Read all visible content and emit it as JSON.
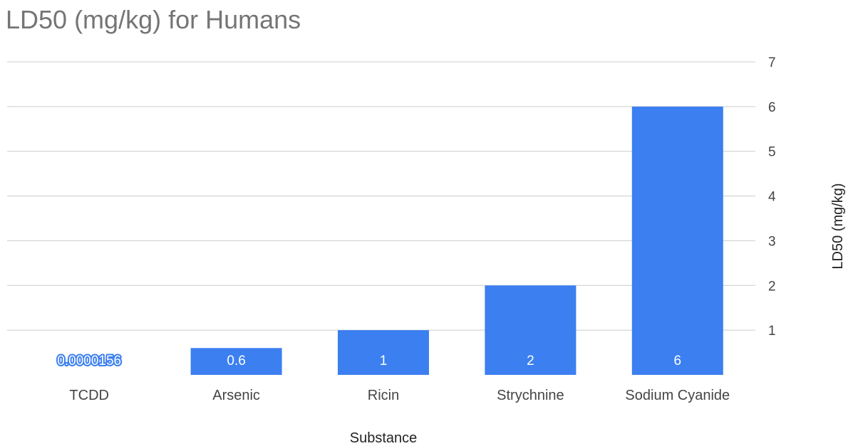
{
  "chart_data": {
    "type": "bar",
    "title": "LD50 (mg/kg) for Humans",
    "xlabel": "Substance",
    "ylabel": "LD50 (mg/kg)",
    "categories": [
      "TCDD",
      "Arsenic",
      "Ricin",
      "Strychnine",
      "Sodium Cyanide"
    ],
    "values": [
      1.56e-05,
      0.6,
      1,
      2,
      6
    ],
    "data_labels": [
      "0.0000156",
      "0.6",
      "1",
      "2",
      "6"
    ],
    "ylim": [
      0,
      7
    ],
    "yticks": [
      1,
      2,
      3,
      4,
      5,
      6,
      7
    ],
    "y_axis_side": "right",
    "grid": true,
    "legend": "none",
    "bar_color": "#3b7ff0"
  }
}
